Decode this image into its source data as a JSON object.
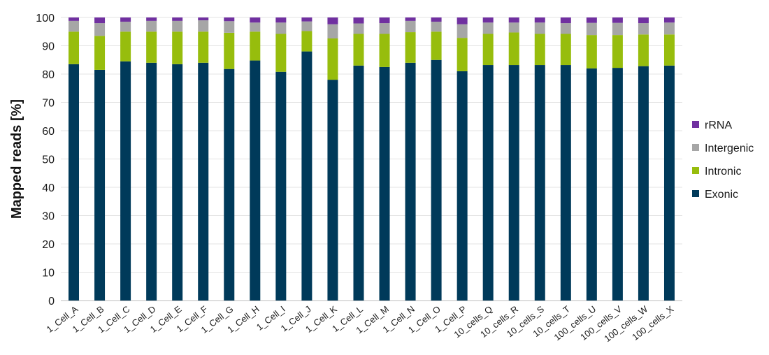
{
  "chart_data": {
    "type": "bar",
    "stacked": true,
    "title": "",
    "xlabel": "",
    "ylabel": "Mapped reads [%]",
    "ylim": [
      0,
      100
    ],
    "yticks": [
      0,
      10,
      20,
      30,
      40,
      50,
      60,
      70,
      80,
      90,
      100
    ],
    "grid": true,
    "legend_position": "right",
    "categories": [
      "1_Cell_A",
      "1_Cell_B",
      "1_Cell_C",
      "1_Cell_D",
      "1_Cell_E",
      "1_Cell_F",
      "1_Cell_G",
      "1_Cell_H",
      "1_Cell_I",
      "1_Cell_J",
      "1_Cell_K",
      "1_Cell_L",
      "1_Cell_M",
      "1_Cell_N",
      "1_Cell_O",
      "1_Cell_P",
      "10_cells_Q",
      "10_cells_R",
      "10_cells_S",
      "10_cells_T",
      "100_cells_U",
      "100_cells_V",
      "100_cells_W",
      "100_cells_X"
    ],
    "series": [
      {
        "name": "Exonic",
        "color": "#003a5a",
        "values": [
          83.5,
          81.5,
          84.5,
          84,
          83.5,
          84,
          81.8,
          84.8,
          80.8,
          88,
          78,
          83,
          82.5,
          84,
          85,
          81,
          83.2,
          83.2,
          83.2,
          83.2,
          82,
          82.2,
          82.8,
          83
        ]
      },
      {
        "name": "Intronic",
        "color": "#97bd0d",
        "values": [
          11.5,
          12,
          10.5,
          11,
          11.5,
          11,
          12.8,
          10.2,
          13.4,
          7.2,
          14.6,
          11.2,
          11.7,
          10.8,
          10,
          11.8,
          11,
          11.5,
          11,
          11,
          11.8,
          11.6,
          11.2,
          11
        ]
      },
      {
        "name": "Intergenic",
        "color": "#a6a6a6",
        "values": [
          3.8,
          4.5,
          3.5,
          3.8,
          3.8,
          4,
          4.1,
          3.2,
          4,
          3.4,
          5,
          3.7,
          3.8,
          4,
          3.5,
          4.8,
          4,
          3.5,
          4,
          3.8,
          4.3,
          4.3,
          4,
          4.2
        ]
      },
      {
        "name": "rRNA",
        "color": "#7030a0",
        "values": [
          1.2,
          2,
          1.5,
          1.2,
          1.2,
          1,
          1.3,
          1.8,
          1.8,
          1.4,
          2.4,
          2.1,
          2,
          1.2,
          1.5,
          2.4,
          1.8,
          1.8,
          1.8,
          2,
          1.9,
          1.9,
          2,
          1.8
        ]
      }
    ]
  }
}
